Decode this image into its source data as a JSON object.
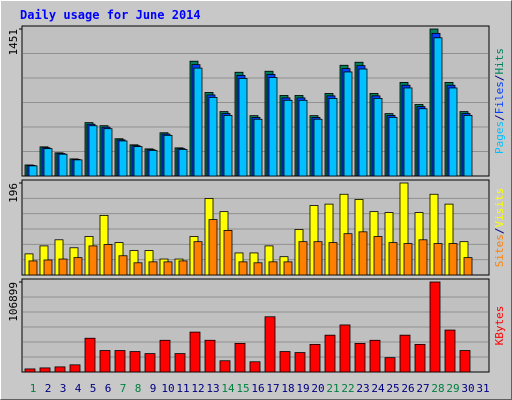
{
  "chart_data": [
    {
      "type": "bar",
      "title": "Daily usage for June 2014",
      "ylim": [
        0,
        1451
      ],
      "yticks": [
        1451
      ],
      "legend_separator": "/",
      "series": [
        {
          "name": "Hits",
          "color": "#00805c",
          "values": [
            109,
            288,
            229,
            169,
            527,
            497,
            368,
            308,
            268,
            427,
            278,
            1133,
            825,
            636,
            1024,
            596,
            1034,
            795,
            795,
            596,
            815,
            1093,
            1123,
            815,
            616,
            924,
            706,
            1451,
            924,
            636,
            null
          ]
        },
        {
          "name": "Files",
          "color": "#0040ff",
          "values": [
            105,
            279,
            222,
            164,
            511,
            482,
            357,
            299,
            260,
            414,
            270,
            1099,
            800,
            617,
            993,
            578,
            1003,
            771,
            771,
            578,
            791,
            1060,
            1089,
            791,
            598,
            896,
            685,
            1408,
            896,
            617,
            null
          ]
        },
        {
          "name": "Pages",
          "color": "#00c0ff",
          "values": [
            100,
            270,
            215,
            159,
            496,
            467,
            346,
            290,
            252,
            401,
            262,
            1065,
            776,
            598,
            963,
            560,
            972,
            747,
            747,
            560,
            766,
            1027,
            1056,
            766,
            579,
            869,
            664,
            1364,
            869,
            598,
            null
          ]
        }
      ]
    },
    {
      "type": "bar",
      "ylim": [
        0,
        196
      ],
      "yticks": [
        196
      ],
      "legend_separator": "/",
      "series": [
        {
          "name": "Visits",
          "color": "#ffff00",
          "values": [
            45,
            62,
            75,
            58,
            82,
            127,
            69,
            52,
            52,
            34,
            34,
            82,
            163,
            135,
            47,
            47,
            62,
            39,
            97,
            148,
            151,
            172,
            161,
            135,
            133,
            196,
            133,
            172,
            151,
            71,
            null
          ]
        },
        {
          "name": "Sites",
          "color": "#ff8000",
          "values": [
            30,
            32,
            34,
            37,
            62,
            65,
            41,
            26,
            28,
            28,
            30,
            71,
            118,
            95,
            28,
            26,
            28,
            28,
            71,
            71,
            69,
            88,
            92,
            82,
            69,
            67,
            75,
            67,
            67,
            37,
            null
          ]
        }
      ]
    },
    {
      "type": "bar",
      "ylim": [
        0,
        106899
      ],
      "yticks": [
        106899
      ],
      "categories": [
        "1",
        "2",
        "3",
        "4",
        "5",
        "6",
        "7",
        "8",
        "9",
        "10",
        "11",
        "12",
        "13",
        "14",
        "15",
        "16",
        "17",
        "18",
        "19",
        "20",
        "21",
        "22",
        "23",
        "24",
        "25",
        "26",
        "27",
        "28",
        "29",
        "30",
        "31"
      ],
      "category_color": "#000080",
      "highlight_color": "#008040",
      "highlight_indices": [
        0,
        6,
        7,
        13,
        14,
        20,
        21,
        27,
        28
      ],
      "series": [
        {
          "name": "KBytes",
          "color": "#ff0000",
          "values": [
            3645,
            4860,
            6075,
            8505,
            40095,
            25515,
            25515,
            24300,
            21870,
            37665,
            21870,
            47385,
            37665,
            13365,
            34020,
            12150,
            65610,
            24300,
            23085,
            32805,
            43740,
            55890,
            34020,
            37665,
            17010,
            43740,
            32805,
            106899,
            49815,
            25515,
            null
          ]
        }
      ]
    }
  ]
}
